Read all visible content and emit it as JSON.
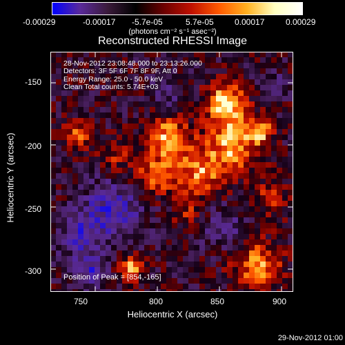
{
  "colorbar": {
    "tick_labels": [
      "-0.00029",
      "-0.00017",
      "-5.7e-05",
      "5.7e-05",
      "0.00017",
      "0.00029"
    ],
    "units": "(photons cm⁻² s⁻¹ asec⁻²)",
    "colors": [
      "#0000ff",
      "#5a2a9a",
      "#3a1a3a",
      "#000000",
      "#6a0000",
      "#c01000",
      "#ff5a00",
      "#ffb020",
      "#ffffc0",
      "#ffffff"
    ]
  },
  "plot": {
    "title": "Reconstructed RHESSI Image",
    "xlabel": "Heliocentric X (arcsec)",
    "ylabel": "Heliocentric Y (arcsec)",
    "x_ticks": [
      "750",
      "800",
      "850",
      "900"
    ],
    "y_ticks": [
      "-150",
      "-200",
      "-250",
      "-300"
    ],
    "info_lines": [
      "28-Nov-2012 23:08:48.000 to 23:13:26.000",
      "Detectors: 3F 5F 6F 7F 8F 9F, Att 0",
      "Energy Range: 25.0 - 50.0 keV",
      "Clean     Total counts: 5.74E+03"
    ],
    "peak_label": "Position of Peak = [854,-165]"
  },
  "footer": {
    "timestamp": "29-Nov-2012 01:00"
  }
}
